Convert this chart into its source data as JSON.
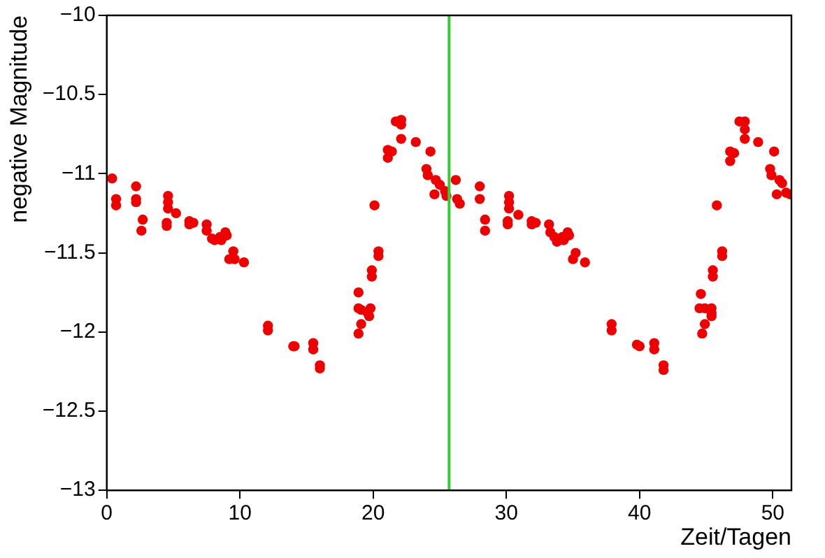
{
  "chart_data": {
    "type": "scatter",
    "xlabel": "Zeit/Tagen",
    "ylabel": "negative Magnitude",
    "xlim": [
      0,
      51.4
    ],
    "xticks": [
      0,
      10,
      20,
      30,
      40,
      50
    ],
    "ylim": [
      -13,
      -10
    ],
    "yticks": [
      {
        "value": -13,
        "label": "−13"
      },
      {
        "value": -12.5,
        "label": "−12.5"
      },
      {
        "value": -12,
        "label": "−12"
      },
      {
        "value": -11.5,
        "label": "−11.5"
      },
      {
        "value": -11,
        "label": "−11"
      },
      {
        "value": -10.5,
        "label": "−10.5"
      },
      {
        "value": -10,
        "label": "−10"
      }
    ],
    "grid": false,
    "legend": false,
    "marker": "circle",
    "ref_lines": [
      {
        "axis": "x",
        "value": 25.7,
        "color": "#33cc33"
      }
    ],
    "series": [
      {
        "color": "#ee0000",
        "x": [
          0.4,
          0.7,
          0.7,
          2.2,
          2.2,
          2.2,
          2.7,
          2.6,
          4.6,
          4.6,
          4.6,
          4.5,
          4.5,
          5.2,
          6.2,
          6.2,
          6.5,
          7.5,
          7.5,
          7.9,
          8.1,
          8.5,
          8.6,
          8.9,
          9.0,
          9.5,
          9.2,
          9.6,
          10.3,
          12.1,
          12.1,
          14.0,
          14.1,
          15.5,
          15.5,
          16.0,
          16.0,
          18.9,
          18.9,
          18.9,
          19.1,
          19.1,
          19.6,
          19.7,
          19.8,
          19.9,
          19.9,
          20.1,
          20.4,
          20.4,
          21.1,
          21.1,
          21.4,
          21.7,
          22.1,
          22.1,
          22.1,
          23.2,
          24.3,
          24.0,
          24.1,
          24.6,
          24.7,
          25.0,
          25.4,
          25.5,
          26.2,
          26.3,
          26.5,
          28.0,
          28.0,
          28.4,
          28.4,
          30.2,
          30.2,
          30.2,
          30.1,
          30.1,
          30.9,
          31.9,
          31.9,
          32.2,
          33.2,
          33.3,
          33.6,
          33.8,
          34.2,
          34.3,
          34.6,
          34.7,
          35.2,
          35.0,
          35.9,
          37.9,
          37.9,
          39.8,
          40.0,
          41.1,
          41.1,
          41.8,
          41.8,
          44.6,
          44.5,
          44.7,
          44.9,
          44.9,
          45.4,
          45.4,
          45.4,
          45.5,
          45.5,
          45.8,
          46.2,
          46.2,
          46.8,
          46.8,
          47.1,
          47.5,
          47.9,
          47.9,
          47.9,
          48.9,
          50.1,
          49.8,
          49.9,
          50.3,
          50.5,
          50.7,
          51.0,
          51.3
        ],
        "values": [
          -11.03,
          -11.16,
          -11.2,
          -11.08,
          -11.16,
          -11.18,
          -11.29,
          -11.36,
          -11.14,
          -11.18,
          -11.22,
          -11.31,
          -11.33,
          -11.25,
          -11.3,
          -11.32,
          -11.31,
          -11.32,
          -11.36,
          -11.41,
          -11.42,
          -11.4,
          -11.42,
          -11.37,
          -11.39,
          -11.49,
          -11.54,
          -11.54,
          -11.56,
          -11.96,
          -11.99,
          -12.09,
          -12.09,
          -12.07,
          -12.11,
          -12.21,
          -12.23,
          -11.75,
          -11.85,
          -12.01,
          -11.86,
          -11.95,
          -11.88,
          -11.9,
          -11.85,
          -11.61,
          -11.65,
          -11.2,
          -11.49,
          -11.52,
          -10.85,
          -10.9,
          -10.86,
          -10.67,
          -10.66,
          -10.69,
          -10.78,
          -10.8,
          -10.86,
          -10.97,
          -11.01,
          -11.13,
          -11.04,
          -11.07,
          -11.11,
          -11.14,
          -11.04,
          -11.16,
          -11.19,
          -11.08,
          -11.16,
          -11.29,
          -11.36,
          -11.14,
          -11.18,
          -11.22,
          -11.3,
          -11.32,
          -11.26,
          -11.3,
          -11.32,
          -11.31,
          -11.32,
          -11.37,
          -11.4,
          -11.43,
          -11.4,
          -11.42,
          -11.37,
          -11.39,
          -11.5,
          -11.54,
          -11.56,
          -11.95,
          -11.99,
          -12.08,
          -12.09,
          -12.07,
          -12.11,
          -12.21,
          -12.24,
          -11.76,
          -11.85,
          -12.01,
          -11.85,
          -11.95,
          -11.88,
          -11.9,
          -11.85,
          -11.61,
          -11.65,
          -11.2,
          -11.49,
          -11.52,
          -10.86,
          -10.92,
          -10.87,
          -10.67,
          -10.67,
          -10.72,
          -10.78,
          -10.8,
          -10.86,
          -10.97,
          -11.01,
          -11.13,
          -11.04,
          -11.06,
          -11.12,
          -11.13
        ]
      }
    ]
  }
}
